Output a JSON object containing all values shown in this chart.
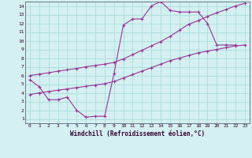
{
  "xlabel": "Windchill (Refroidissement éolien,°C)",
  "background_color": "#d4f0f0",
  "line_color": "#993399",
  "grid_color": "#aadddd",
  "xlim": [
    -0.5,
    23.5
  ],
  "ylim": [
    0.5,
    14.5
  ],
  "wavy_x": [
    0,
    1,
    2,
    3,
    4,
    5,
    6,
    7,
    8,
    9,
    10,
    11,
    12,
    13,
    14,
    15,
    16,
    17,
    18,
    19,
    20,
    21,
    22
  ],
  "wavy_y": [
    5.5,
    4.7,
    3.2,
    3.2,
    3.5,
    2.0,
    1.2,
    1.3,
    1.3,
    6.2,
    11.8,
    12.5,
    12.5,
    14.0,
    14.5,
    13.5,
    13.3,
    13.3,
    13.3,
    12.0,
    9.5,
    9.5,
    9.5
  ],
  "diag_upper_x": [
    0,
    1,
    2,
    3,
    4,
    5,
    6,
    7,
    8,
    9,
    10,
    11,
    12,
    13,
    14,
    15,
    16,
    17,
    18,
    19,
    20,
    21,
    22,
    23
  ],
  "diag_upper_y": [
    6.0,
    6.15,
    6.3,
    6.5,
    6.65,
    6.8,
    7.0,
    7.15,
    7.3,
    7.5,
    7.9,
    8.4,
    8.9,
    9.4,
    9.9,
    10.5,
    11.2,
    11.9,
    12.3,
    12.8,
    13.2,
    13.6,
    14.0,
    14.3
  ],
  "diag_lower_x": [
    0,
    1,
    2,
    3,
    4,
    5,
    6,
    7,
    8,
    9,
    10,
    11,
    12,
    13,
    14,
    15,
    16,
    17,
    18,
    19,
    20,
    21,
    22,
    23
  ],
  "diag_lower_y": [
    3.8,
    4.0,
    4.15,
    4.3,
    4.45,
    4.6,
    4.75,
    4.9,
    5.05,
    5.3,
    5.7,
    6.1,
    6.5,
    6.9,
    7.3,
    7.7,
    8.0,
    8.3,
    8.6,
    8.8,
    9.0,
    9.2,
    9.4,
    9.5
  ]
}
